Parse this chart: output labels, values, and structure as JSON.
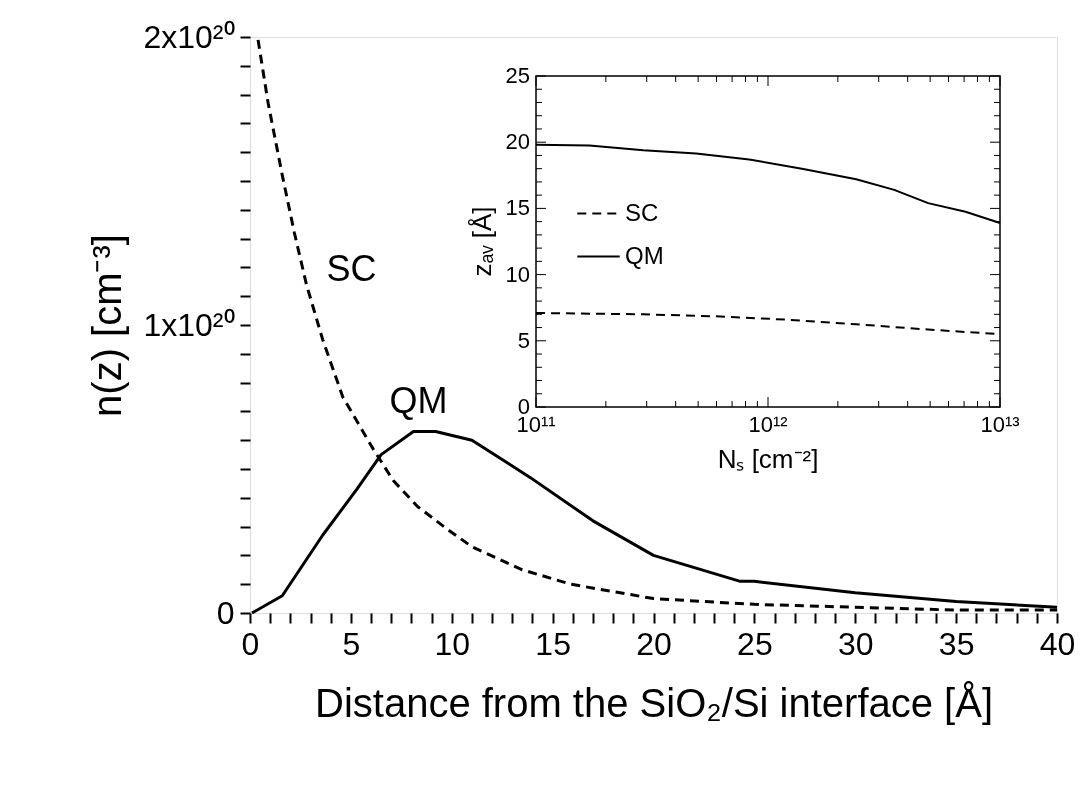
{
  "chart_data": [
    {
      "type": "line",
      "xlabel": "Distance from the SiO₂/Si interface  [Å]",
      "ylabel": "n(z) [cm⁻³]",
      "xlim": [
        0,
        40
      ],
      "xticks": [
        0,
        {
          "value": 1,
          "label": null
        },
        {
          "value": 2,
          "label": null
        },
        {
          "value": 3,
          "label": null
        },
        {
          "value": 4,
          "label": null
        },
        5,
        {
          "value": 6,
          "label": null
        },
        {
          "value": 7,
          "label": null
        },
        {
          "value": 8,
          "label": null
        },
        {
          "value": 9,
          "label": null
        },
        10,
        {
          "value": 11,
          "label": null
        },
        {
          "value": 12,
          "label": null
        },
        {
          "value": 13,
          "label": null
        },
        {
          "value": 14,
          "label": null
        },
        15,
        {
          "value": 16,
          "label": null
        },
        {
          "value": 17,
          "label": null
        },
        {
          "value": 18,
          "label": null
        },
        {
          "value": 19,
          "label": null
        },
        20,
        {
          "value": 21,
          "label": null
        },
        {
          "value": 22,
          "label": null
        },
        {
          "value": 23,
          "label": null
        },
        {
          "value": 24,
          "label": null
        },
        25,
        {
          "value": 26,
          "label": null
        },
        {
          "value": 27,
          "label": null
        },
        {
          "value": 28,
          "label": null
        },
        {
          "value": 29,
          "label": null
        },
        30,
        {
          "value": 31,
          "label": null
        },
        {
          "value": 32,
          "label": null
        },
        {
          "value": 33,
          "label": null
        },
        {
          "value": 34,
          "label": null
        },
        35,
        {
          "value": 36,
          "label": null
        },
        {
          "value": 37,
          "label": null
        },
        {
          "value": 38,
          "label": null
        },
        {
          "value": 39,
          "label": null
        },
        40
      ],
      "ylim": [
        0,
        2e+20
      ],
      "yticks": [
        0,
        {
          "value": 1e+19,
          "label": null
        },
        {
          "value": 2e+19,
          "label": null
        },
        {
          "value": 3e+19,
          "label": null
        },
        {
          "value": 4e+19,
          "label": null
        },
        {
          "value": 5e+19,
          "label": null
        },
        {
          "value": 6e+19,
          "label": null
        },
        {
          "value": 7e+19,
          "label": null
        },
        {
          "value": 8e+19,
          "label": null
        },
        {
          "value": 9e+19,
          "label": null
        },
        {
          "value": 1e+20,
          "label": "1x10²⁰"
        },
        {
          "value": 1.1e+20,
          "label": null
        },
        {
          "value": 1.2e+20,
          "label": null
        },
        {
          "value": 1.3e+20,
          "label": null
        },
        {
          "value": 1.4e+20,
          "label": null
        },
        {
          "value": 1.5e+20,
          "label": null
        },
        {
          "value": 1.6e+20,
          "label": null
        },
        {
          "value": 1.7e+20,
          "label": null
        },
        {
          "value": 1.8e+20,
          "label": null
        },
        {
          "value": 1.9e+20,
          "label": null
        },
        {
          "value": 2e+20,
          "label": "2x10²⁰"
        }
      ],
      "grid": false,
      "series": [
        {
          "name": "SC",
          "color": "#000000",
          "line_style": "dashed",
          "x": [
            0.4,
            0.9,
            1.6,
            2.2,
            2.8,
            3.6,
            4.6,
            6.1,
            7.1,
            8.3,
            9.8,
            11.0,
            13.5,
            15.9,
            20.0,
            25.0,
            30.0,
            35.0,
            40.0
          ],
          "values": [
            1.99e+20,
            1.77e+20,
            1.52e+20,
            1.32e+20,
            1.14e+20,
            9.5e+19,
            7.5e+19,
            5.7e+19,
            4.6e+19,
            3.7e+19,
            2.9e+19,
            2.3e+19,
            1.5e+19,
            1e+19,
            5e+18,
            3e+18,
            2e+18,
            1e+18,
            1e+18
          ]
        },
        {
          "name": "QM",
          "color": "#000000",
          "line_style": "solid",
          "x": [
            0.1,
            1.6,
            3.6,
            5.3,
            6.5,
            8.1,
            9.2,
            11.0,
            13.9,
            17.0,
            20.0,
            24.3,
            25.0,
            30.0,
            35.0,
            40.0
          ],
          "values": [
            0,
            6e+18,
            2.7e+19,
            4.3e+19,
            5.5e+19,
            6.3e+19,
            6.3e+19,
            6e+19,
            4.7e+19,
            3.2e+19,
            2e+19,
            1.1e+19,
            1.1e+19,
            7e+18,
            4e+18,
            2e+18
          ]
        }
      ]
    },
    {
      "type": "line",
      "xlabel": "Nₛ  [cm⁻²]",
      "ylabel": "zₐᵥ  [Å]",
      "log": "x",
      "xlim": [
        100000000000.0,
        10000000000000.0
      ],
      "xticks": [
        {
          "value": 100000000000.0,
          "label": "10¹¹"
        },
        {
          "value": 200000000000.0,
          "label": null
        },
        {
          "value": 300000000000.0,
          "label": null
        },
        {
          "value": 400000000000.0,
          "label": null
        },
        {
          "value": 500000000000.0,
          "label": null
        },
        {
          "value": 600000000000.0,
          "label": null
        },
        {
          "value": 700000000000.0,
          "label": null
        },
        {
          "value": 800000000000.0,
          "label": null
        },
        {
          "value": 900000000000.0,
          "label": null
        },
        {
          "value": 1000000000000.0,
          "label": "10¹²"
        },
        {
          "value": 2000000000000.0,
          "label": null
        },
        {
          "value": 3000000000000.0,
          "label": null
        },
        {
          "value": 4000000000000.0,
          "label": null
        },
        {
          "value": 5000000000000.0,
          "label": null
        },
        {
          "value": 6000000000000.0,
          "label": null
        },
        {
          "value": 7000000000000.0,
          "label": null
        },
        {
          "value": 8000000000000.0,
          "label": null
        },
        {
          "value": 9000000000000.0,
          "label": null
        },
        {
          "value": 10000000000000.0,
          "label": "10¹³"
        }
      ],
      "ylim": [
        0,
        25
      ],
      "yticks": [
        0,
        {
          "value": 1,
          "label": null
        },
        {
          "value": 2,
          "label": null
        },
        {
          "value": 3,
          "label": null
        },
        {
          "value": 4,
          "label": null
        },
        5,
        {
          "value": 6,
          "label": null
        },
        {
          "value": 7,
          "label": null
        },
        {
          "value": 8,
          "label": null
        },
        {
          "value": 9,
          "label": null
        },
        10,
        {
          "value": 11,
          "label": null
        },
        {
          "value": 12,
          "label": null
        },
        {
          "value": 13,
          "label": null
        },
        {
          "value": 14,
          "label": null
        },
        15,
        {
          "value": 16,
          "label": null
        },
        {
          "value": 17,
          "label": null
        },
        {
          "value": 18,
          "label": null
        },
        {
          "value": 19,
          "label": null
        },
        20,
        {
          "value": 21,
          "label": null
        },
        {
          "value": 22,
          "label": null
        },
        {
          "value": 23,
          "label": null
        },
        {
          "value": 24,
          "label": null
        },
        25
      ],
      "legend": "top left",
      "series": [
        {
          "name": "SC",
          "color": "#000000",
          "line_style": "dashed",
          "x": [
            100000000000.0,
            290000000000.0,
            590000000000.0,
            1200000000000.0,
            2400000000000.0,
            4900000000000.0,
            10000000000000.0
          ],
          "values": [
            7.1,
            7.0,
            6.85,
            6.6,
            6.25,
            5.85,
            5.5
          ]
        },
        {
          "name": "QM",
          "color": "#000000",
          "line_style": "solid",
          "x": [
            100000000000.0,
            170000000000.0,
            290000000000.0,
            490000000000.0,
            830000000000.0,
            1400000000000.0,
            2400000000000.0,
            3500000000000.0,
            4900000000000.0,
            7100000000000.0,
            10000000000000.0
          ],
          "values": [
            19.8,
            19.75,
            19.4,
            19.15,
            18.7,
            18.0,
            17.2,
            16.4,
            15.4,
            14.75,
            13.9
          ]
        }
      ]
    }
  ]
}
